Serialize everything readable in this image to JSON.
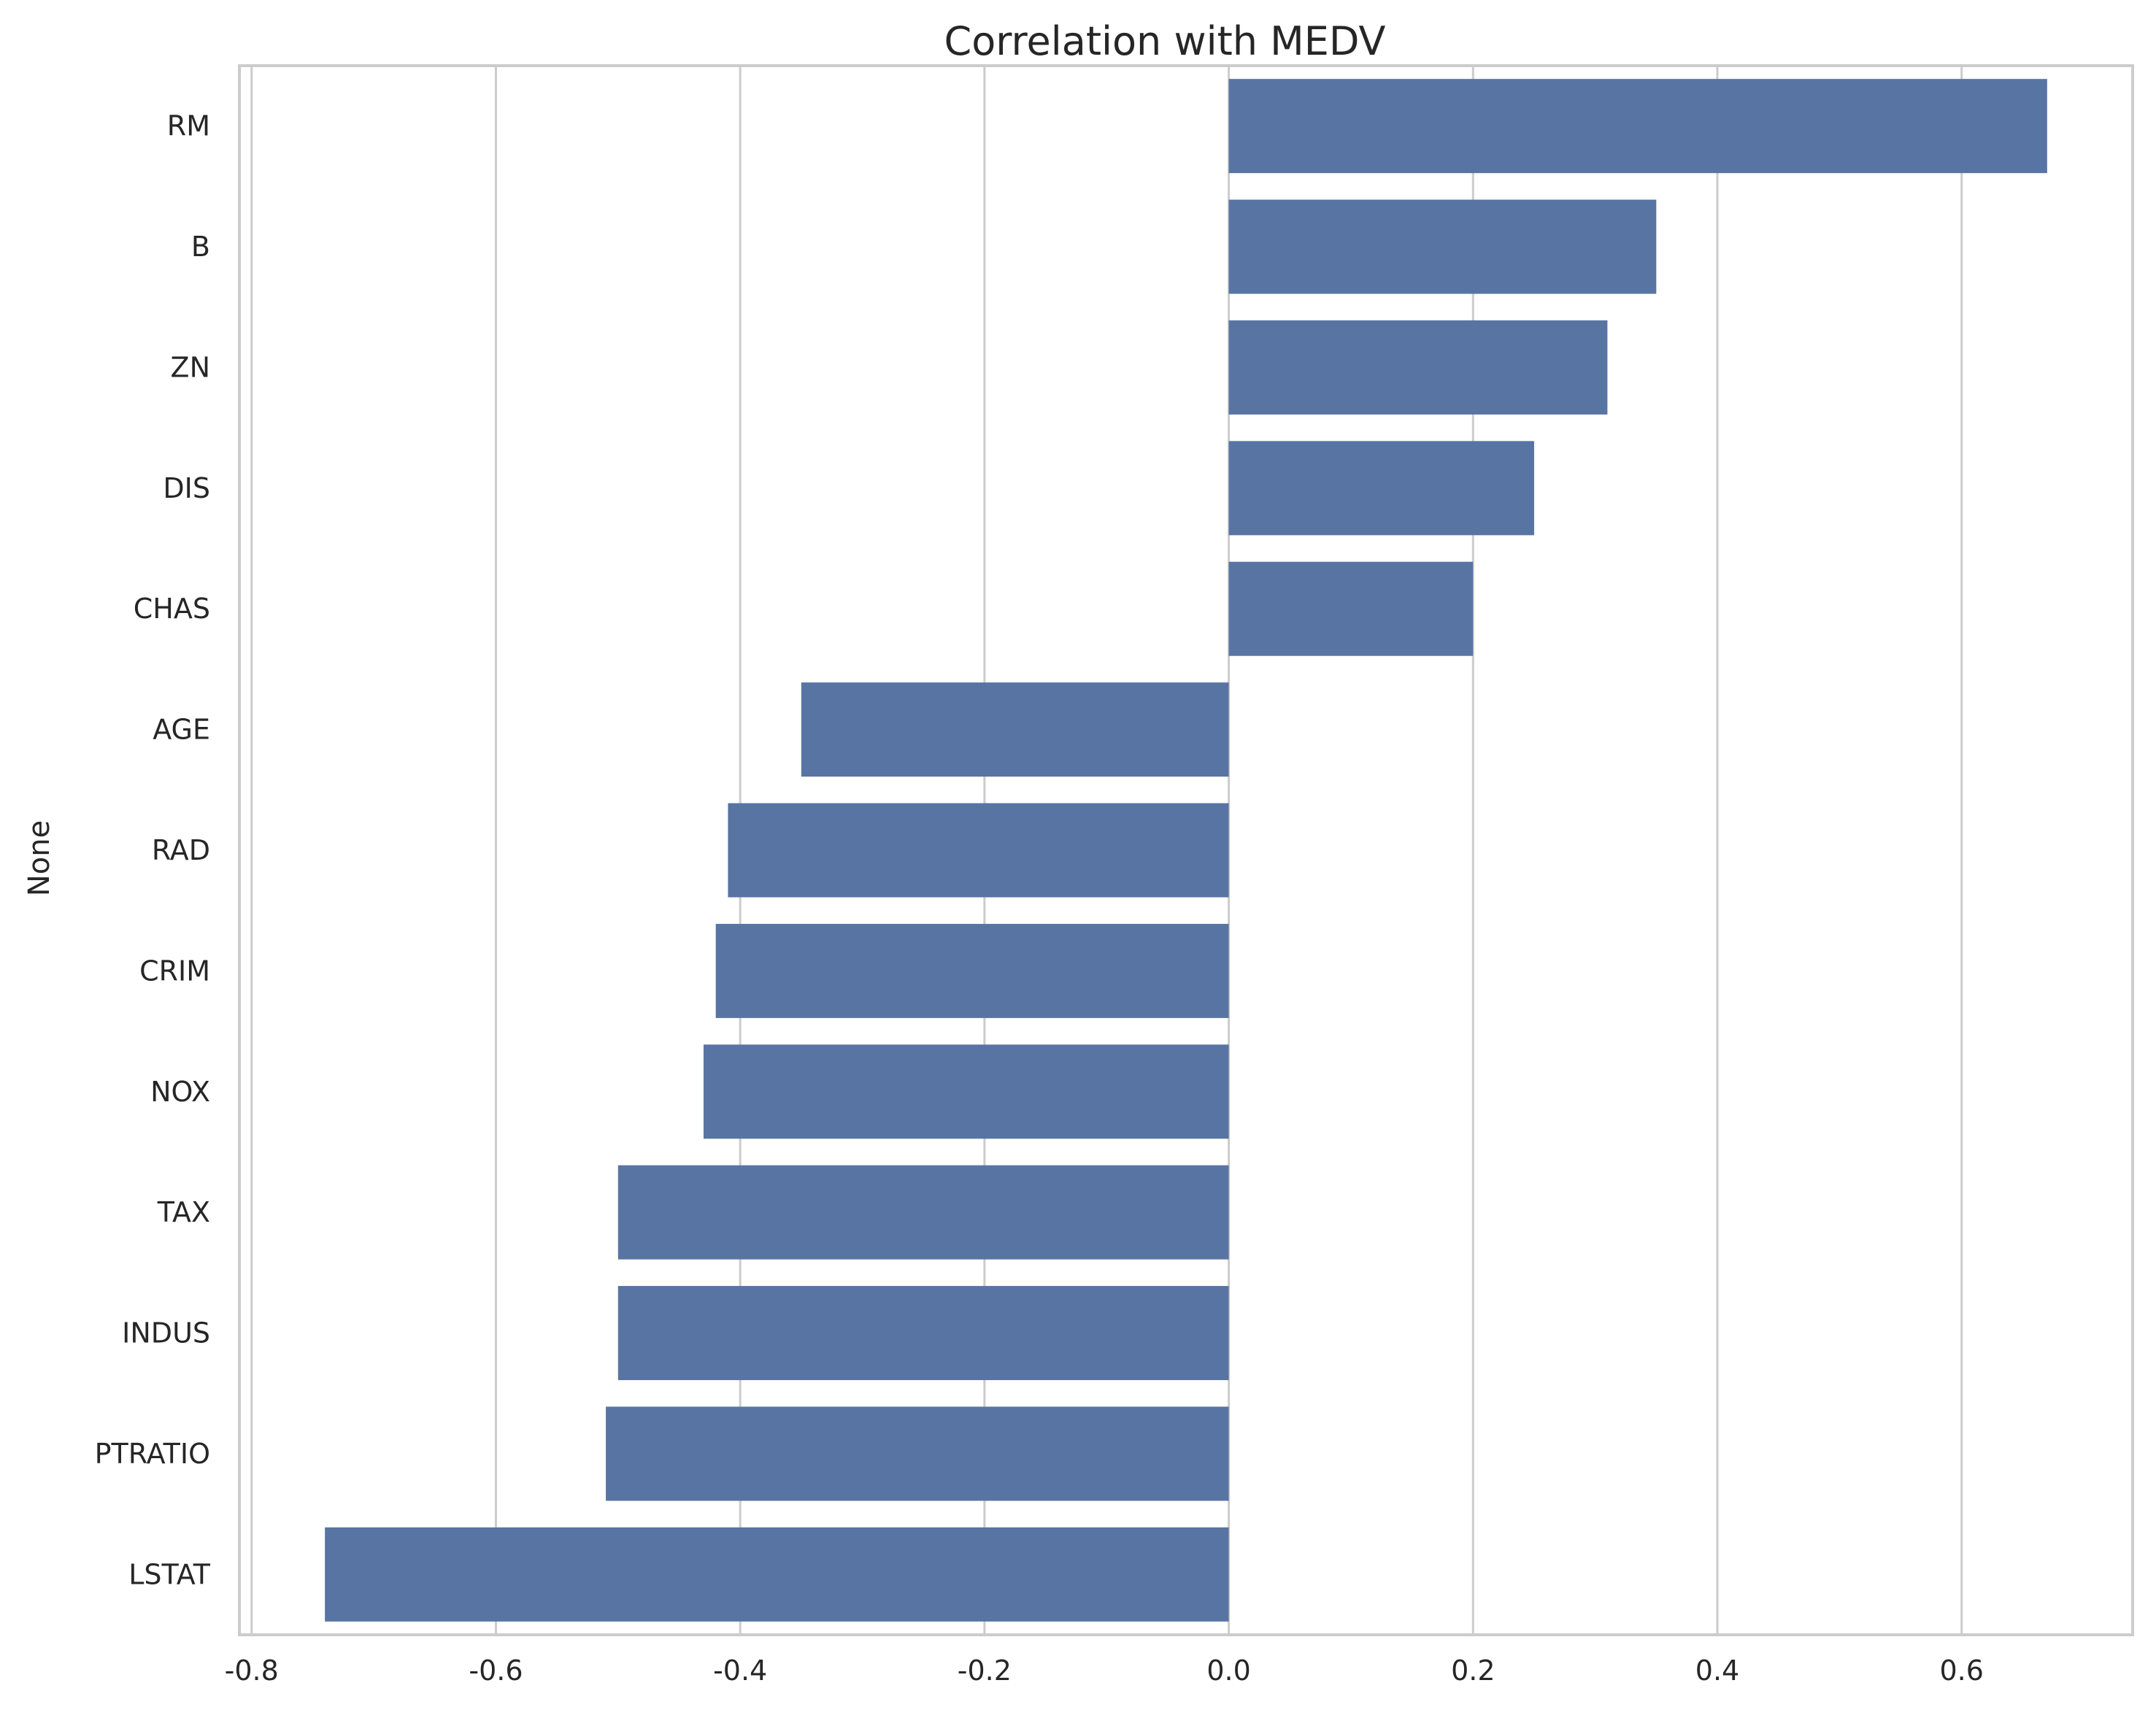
{
  "chart_data": {
    "type": "bar",
    "orientation": "horizontal",
    "title": "Correlation with MEDV",
    "xlabel": "",
    "ylabel": "None",
    "categories": [
      "RM",
      "B",
      "ZN",
      "DIS",
      "CHAS",
      "AGE",
      "RAD",
      "CRIM",
      "NOX",
      "TAX",
      "INDUS",
      "PTRATIO",
      "LSTAT"
    ],
    "values": [
      0.67,
      0.35,
      0.31,
      0.25,
      0.2,
      -0.35,
      -0.41,
      -0.42,
      -0.43,
      -0.5,
      -0.5,
      -0.51,
      -0.74
    ],
    "xlim": [
      -0.81,
      0.74
    ],
    "xticks": [
      -0.8,
      -0.6,
      -0.4,
      -0.2,
      0.0,
      0.2,
      0.4,
      0.6
    ],
    "xtick_labels": [
      "-0.8",
      "-0.6",
      "-0.4",
      "-0.2",
      "0.0",
      "0.2",
      "0.4",
      "0.6"
    ],
    "grid": "vertical",
    "legend": "none",
    "colors": {
      "bar": "#5874a3",
      "grid": "#cccccc",
      "frame": "#cccccc",
      "text": "#262626",
      "background": "#ffffff"
    }
  }
}
